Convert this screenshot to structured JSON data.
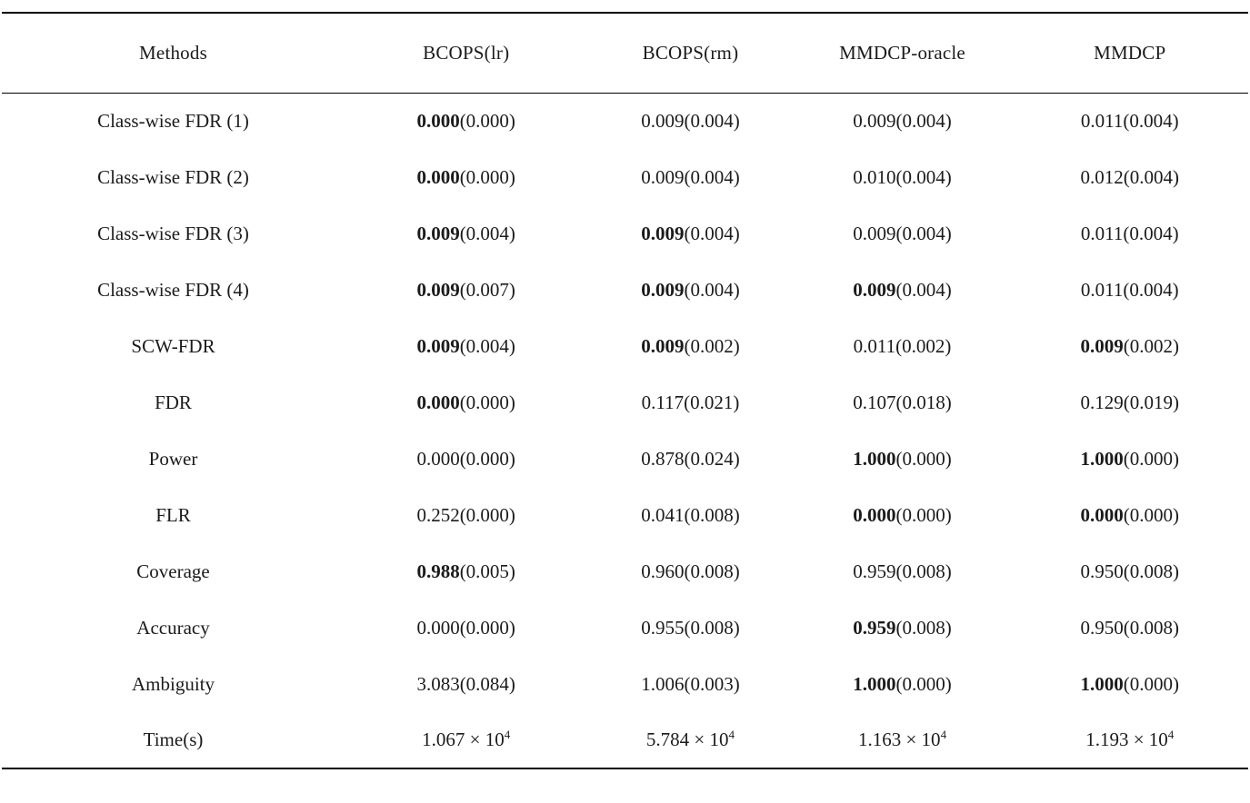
{
  "page": {
    "background": "#ffffff",
    "text_color": "#1b1b1b"
  },
  "table": {
    "headers": [
      "Methods",
      "BCOPS(lr)",
      "BCOPS(rm)",
      "MMDCP-oracle",
      "MMDCP"
    ],
    "rows": [
      {
        "label": "Class-wise FDR (1)",
        "cells": [
          {
            "main": "0.000",
            "bold": true,
            "paren": "(0.000)"
          },
          {
            "main": "0.009",
            "bold": false,
            "paren": "(0.004)"
          },
          {
            "main": "0.009",
            "bold": false,
            "paren": "(0.004)"
          },
          {
            "main": "0.011",
            "bold": false,
            "paren": "(0.004)"
          }
        ]
      },
      {
        "label": "Class-wise FDR (2)",
        "cells": [
          {
            "main": "0.000",
            "bold": true,
            "paren": "(0.000)"
          },
          {
            "main": "0.009",
            "bold": false,
            "paren": "(0.004)"
          },
          {
            "main": "0.010",
            "bold": false,
            "paren": "(0.004)"
          },
          {
            "main": "0.012",
            "bold": false,
            "paren": "(0.004)"
          }
        ]
      },
      {
        "label": "Class-wise FDR (3)",
        "cells": [
          {
            "main": "0.009",
            "bold": true,
            "paren": "(0.004)"
          },
          {
            "main": "0.009",
            "bold": true,
            "paren": "(0.004)"
          },
          {
            "main": "0.009",
            "bold": false,
            "paren": "(0.004)"
          },
          {
            "main": "0.011",
            "bold": false,
            "paren": "(0.004)"
          }
        ]
      },
      {
        "label": "Class-wise FDR (4)",
        "cells": [
          {
            "main": "0.009",
            "bold": true,
            "paren": "(0.007)"
          },
          {
            "main": "0.009",
            "bold": true,
            "paren": "(0.004)"
          },
          {
            "main": "0.009",
            "bold": true,
            "paren": "(0.004)"
          },
          {
            "main": "0.011",
            "bold": false,
            "paren": "(0.004)"
          }
        ]
      },
      {
        "label": "SCW-FDR",
        "cells": [
          {
            "main": "0.009",
            "bold": true,
            "paren": "(0.004)"
          },
          {
            "main": "0.009",
            "bold": true,
            "paren": "(0.002)"
          },
          {
            "main": "0.011",
            "bold": false,
            "paren": "(0.002)"
          },
          {
            "main": "0.009",
            "bold": true,
            "paren": "(0.002)"
          }
        ]
      },
      {
        "label": "FDR",
        "cells": [
          {
            "main": "0.000",
            "bold": true,
            "paren": "(0.000)"
          },
          {
            "main": "0.117",
            "bold": false,
            "paren": "(0.021)"
          },
          {
            "main": "0.107",
            "bold": false,
            "paren": "(0.018)"
          },
          {
            "main": "0.129",
            "bold": false,
            "paren": "(0.019)"
          }
        ]
      },
      {
        "label": "Power",
        "cells": [
          {
            "main": "0.000",
            "bold": false,
            "paren": "(0.000)"
          },
          {
            "main": "0.878",
            "bold": false,
            "paren": "(0.024)"
          },
          {
            "main": "1.000",
            "bold": true,
            "paren": "(0.000)"
          },
          {
            "main": "1.000",
            "bold": true,
            "paren": "(0.000)"
          }
        ]
      },
      {
        "label": "FLR",
        "cells": [
          {
            "main": "0.252",
            "bold": false,
            "paren": "(0.000)"
          },
          {
            "main": "0.041",
            "bold": false,
            "paren": "(0.008)"
          },
          {
            "main": "0.000",
            "bold": true,
            "paren": "(0.000)"
          },
          {
            "main": "0.000",
            "bold": true,
            "paren": "(0.000)"
          }
        ]
      },
      {
        "label": "Coverage",
        "cells": [
          {
            "main": "0.988",
            "bold": true,
            "paren": "(0.005)"
          },
          {
            "main": "0.960",
            "bold": false,
            "paren": "(0.008)"
          },
          {
            "main": "0.959",
            "bold": false,
            "paren": "(0.008)"
          },
          {
            "main": "0.950",
            "bold": false,
            "paren": "(0.008)"
          }
        ]
      },
      {
        "label": "Accuracy",
        "cells": [
          {
            "main": "0.000",
            "bold": false,
            "paren": "(0.000)"
          },
          {
            "main": "0.955",
            "bold": false,
            "paren": "(0.008)"
          },
          {
            "main": "0.959",
            "bold": true,
            "paren": "(0.008)"
          },
          {
            "main": "0.950",
            "bold": false,
            "paren": "(0.008)"
          }
        ]
      },
      {
        "label": "Ambiguity",
        "cells": [
          {
            "main": "3.083",
            "bold": false,
            "paren": "(0.084)"
          },
          {
            "main": "1.006",
            "bold": false,
            "paren": "(0.003)"
          },
          {
            "main": "1.000",
            "bold": true,
            "paren": "(0.000)"
          },
          {
            "main": "1.000",
            "bold": true,
            "paren": "(0.000)"
          }
        ]
      },
      {
        "label": "Time(s)",
        "cells": [
          {
            "main": "1.067 × 10",
            "sup": "4",
            "bold": false,
            "paren": ""
          },
          {
            "main": "5.784 × 10",
            "sup": "4",
            "bold": false,
            "paren": ""
          },
          {
            "main": "1.163 × 10",
            "sup": "4",
            "bold": false,
            "paren": ""
          },
          {
            "main": "1.193 × 10",
            "sup": "4",
            "bold": false,
            "paren": ""
          }
        ]
      }
    ]
  }
}
